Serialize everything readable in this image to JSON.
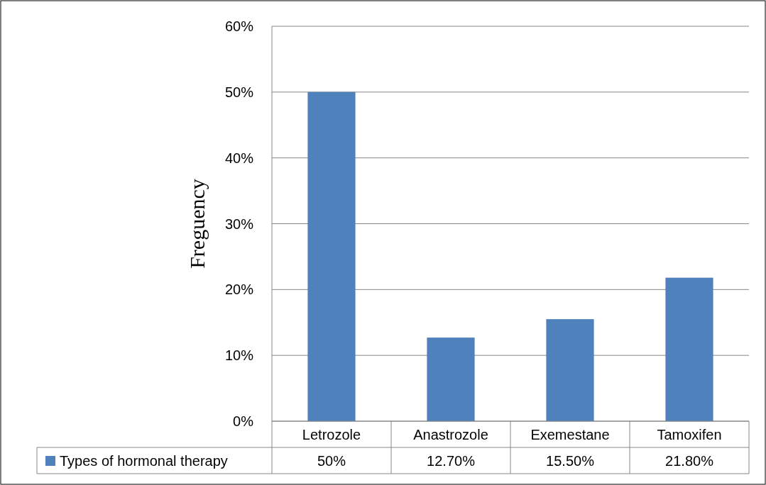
{
  "chart_data": {
    "type": "bar",
    "ylabel": "Freguency",
    "categories": [
      "Letrozole",
      "Anastrozole",
      "Exemestane",
      "Tamoxifen"
    ],
    "series": [
      {
        "name": "Types of hormonal therapy",
        "color": "#4f81bd",
        "values": [
          50,
          12.7,
          15.5,
          21.8
        ],
        "value_labels": [
          "50%",
          "12.70%",
          "15.50%",
          "21.80%"
        ]
      }
    ],
    "ylim": [
      0,
      60
    ],
    "yticks": [
      {
        "value": 0,
        "label": "0%"
      },
      {
        "value": 10,
        "label": "10%"
      },
      {
        "value": 20,
        "label": "20%"
      },
      {
        "value": 30,
        "label": "30%"
      },
      {
        "value": 40,
        "label": "40%"
      },
      {
        "value": 50,
        "label": "50%"
      },
      {
        "value": 60,
        "label": "60%"
      }
    ],
    "grid": "y",
    "legend": "bottom"
  }
}
